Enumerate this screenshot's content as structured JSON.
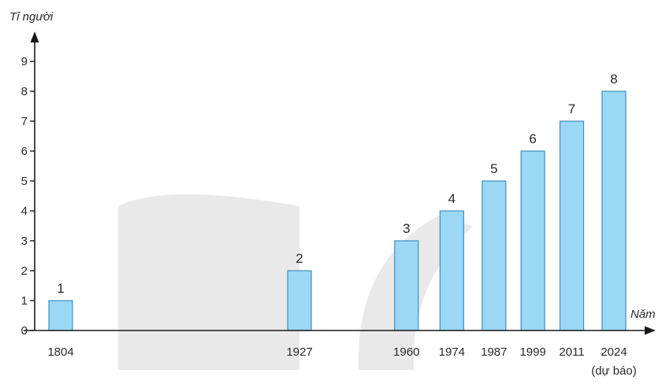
{
  "chart_data": {
    "type": "bar",
    "title": "",
    "ylabel": "Tỉ người",
    "xlabel": "Năm",
    "categories": [
      "1804",
      "1927",
      "1960",
      "1974",
      "1987",
      "1999",
      "2011",
      "2024"
    ],
    "category_notes": [
      "",
      "",
      "",
      "",
      "",
      "",
      "",
      "(dự báo)"
    ],
    "values": [
      1,
      2,
      3,
      4,
      5,
      6,
      7,
      8
    ],
    "ylim": [
      0,
      9
    ],
    "yticks": [
      0,
      1,
      2,
      3,
      4,
      5,
      6,
      7,
      8,
      9
    ],
    "grid": false,
    "bar_color": "#9ad8f5",
    "bar_edge_color": "#3d8fc2"
  }
}
